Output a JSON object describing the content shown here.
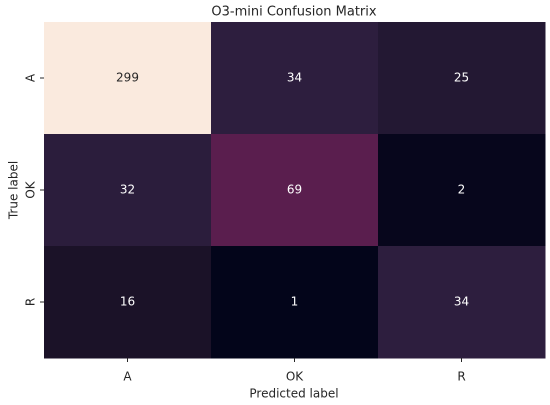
{
  "chart_data": {
    "type": "heatmap",
    "title": "O3-mini Confusion Matrix",
    "xlabel": "Predicted label",
    "ylabel": "True label",
    "x_categories": [
      "A",
      "OK",
      "R"
    ],
    "y_categories": [
      "A",
      "OK",
      "R"
    ],
    "values": [
      [
        299,
        34,
        25
      ],
      [
        32,
        69,
        2
      ],
      [
        16,
        1,
        34
      ]
    ],
    "colors": [
      [
        "#faeade",
        "#2d1e3e",
        "#231833"
      ],
      [
        "#2b1d3c",
        "#5a1e4e",
        "#07061c"
      ],
      [
        "#1b1228",
        "#03051a",
        "#2d1e3e"
      ]
    ]
  }
}
